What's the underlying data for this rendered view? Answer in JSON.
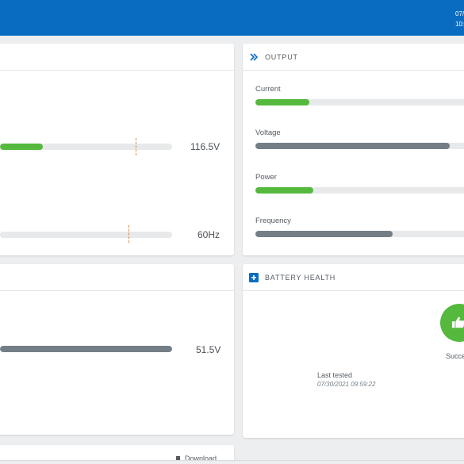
{
  "header": {
    "date_fragment": "07/",
    "time_fragment": "10:"
  },
  "input_card": {
    "voltage": {
      "value": "116.5V",
      "level": 0.25
    },
    "frequency": {
      "value": "60Hz",
      "level": 0.0
    }
  },
  "output_card": {
    "title": "OUTPUT",
    "icon": "chevron-right-icon",
    "metrics": [
      {
        "label": "Current",
        "level": 0.25,
        "color": "#55b93e"
      },
      {
        "label": "Voltage",
        "level": 0.93,
        "color": "#747e86"
      },
      {
        "label": "Power",
        "level": 0.27,
        "color": "#55b93e"
      },
      {
        "label": "Frequency",
        "level": 0.65,
        "color": "#747e86"
      }
    ]
  },
  "battery_card_left": {
    "voltage": {
      "value": "51.5V",
      "level": 1.0
    }
  },
  "battery_health": {
    "title": "BATTERY HEALTH",
    "icon": "plus-icon",
    "status_icon": "thumbs-up-icon",
    "status_text": "Succe",
    "last_tested_label": "Last tested",
    "last_tested_date": "07/30/2021 09:59:22"
  },
  "bottom_card": {
    "download_label": "Download"
  },
  "colors": {
    "accent_blue": "#0a6cc0",
    "ok_green": "#55b93e",
    "neutral_gray": "#747e86"
  }
}
